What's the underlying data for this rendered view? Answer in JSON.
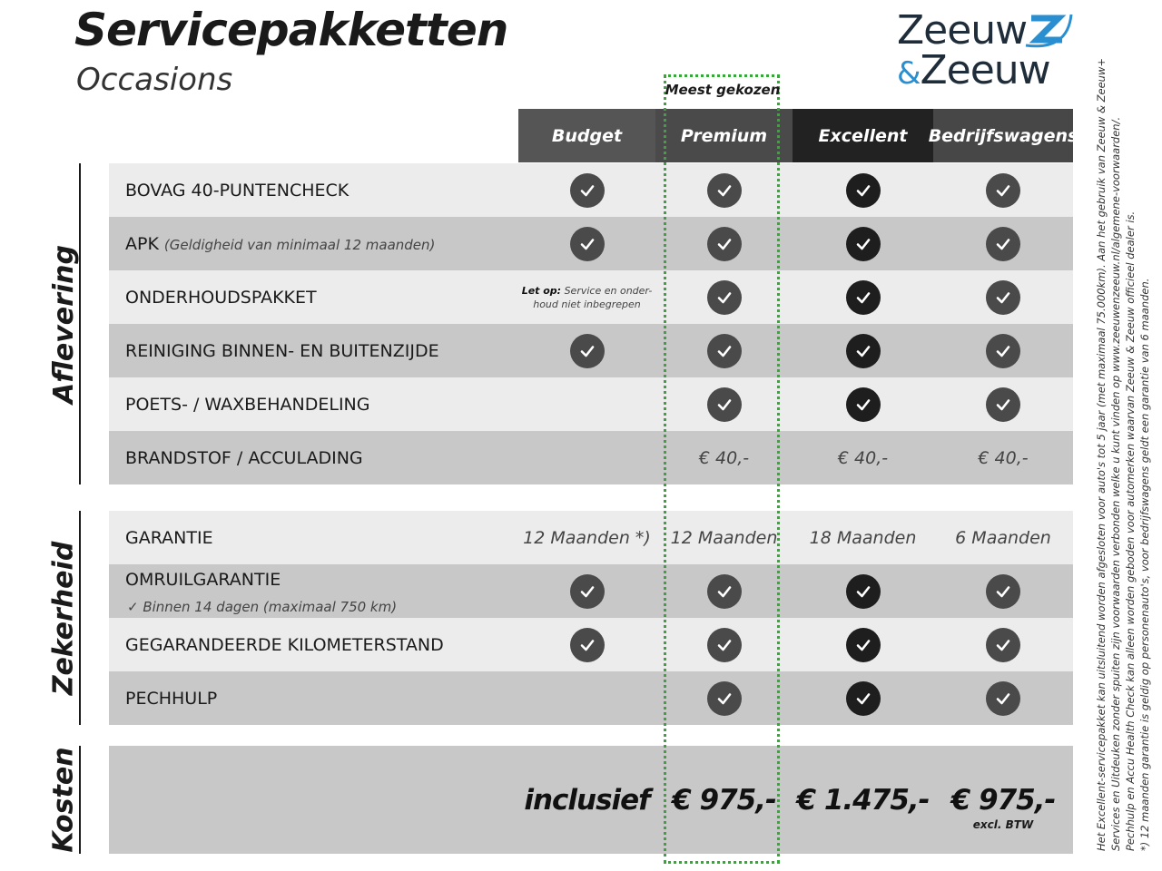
{
  "header": {
    "title": "Servicepakketten",
    "subtitle": "Occasions",
    "logo_text": "Zeeuw & Zeeuw",
    "logo_line1": "Zeeuw",
    "logo_amp": "&",
    "logo_line2": "Zeeuw"
  },
  "highlight_label": "Meest gekozen",
  "colors": {
    "highlight": "#3aa53a",
    "logo_dark": "#1f2d3a",
    "logo_blue": "#2a8fd0"
  },
  "columns": [
    {
      "label": "Budget",
      "bg": "#555555"
    },
    {
      "label": "Premium",
      "bg": "#4a4a4a"
    },
    {
      "label": "Excellent",
      "bg": "#222222"
    },
    {
      "label": "Bedrijfswagens",
      "bg": "#474747"
    }
  ],
  "sections": [
    {
      "name": "Aflevering",
      "rows": [
        {
          "label": "BOVAG 40-PUNTENCHECK",
          "cells": [
            "check",
            "check",
            "check",
            "check"
          ]
        },
        {
          "label": "APK",
          "sub": "(Geldigheid van minimaal 12 maanden)",
          "cells": [
            "check",
            "check",
            "check",
            "check"
          ]
        },
        {
          "label": "ONDERHOUDSPAKKET",
          "cells": [
            {
              "note_bold": "Let op:",
              "note": "Service en onder-",
              "note2": "houd niet inbegrepen"
            },
            "check",
            "check",
            "check"
          ]
        },
        {
          "label": "REINIGING BINNEN- EN BUITENZIJDE",
          "cells": [
            "check",
            "check",
            "check",
            "check"
          ]
        },
        {
          "label": "POETS- / WAXBEHANDELING",
          "cells": [
            "",
            "check",
            "check",
            "check"
          ]
        },
        {
          "label": "BRANDSTOF / ACCULADING",
          "cells": [
            "",
            {
              "text": "€ 40,-"
            },
            {
              "text": "€ 40,-"
            },
            {
              "text": "€ 40,-"
            }
          ]
        }
      ]
    },
    {
      "name": "Zekerheid",
      "rows": [
        {
          "label": "GARANTIE",
          "cells": [
            {
              "text": "12 Maanden *)"
            },
            {
              "text": "12 Maanden"
            },
            {
              "text": "18 Maanden"
            },
            {
              "text": "6 Maanden"
            }
          ]
        },
        {
          "label": "OMRUILGARANTIE",
          "sub2": "✓   Binnen 14 dagen (maximaal 750 km)",
          "cells": [
            "check",
            "check",
            "check",
            "check"
          ]
        },
        {
          "label": "GEGARANDEERDE KILOMETERSTAND",
          "cells": [
            "check",
            "check",
            "check",
            "check"
          ]
        },
        {
          "label": "PECHHULP",
          "cells": [
            "",
            "check",
            "check",
            "check"
          ]
        }
      ]
    },
    {
      "name": "Kosten",
      "rows": [
        {
          "label": "",
          "cells": [
            {
              "price": "inclusief"
            },
            {
              "price": "€ 975,-"
            },
            {
              "price": "€ 1.475,-"
            },
            {
              "price": "€ 975,-",
              "excl": "excl. BTW"
            }
          ]
        }
      ]
    }
  ],
  "footnotes": [
    "Het Excellent-servicepakket kan uitsluitend worden afgesloten voor auto's tot 5 jaar (met maximaal 75.000km). Aan het gebruik van Zeeuw & Zeeuw+",
    "Services en Uitdeuken zonder spuiten zijn voorwaarden verbonden welke u kunt vinden op www.zeeuwenzeeuw.nl/algemene-voorwaarden/.",
    "Pechhulp en Accu Health Check kan alleen worden geboden voor automerken waarvan Zeeuw & Zeeuw officieel dealer is.",
    "*) 12 maanden garantie is geldig op personenauto's, voor bedrijfswagens geldt een garantie van 6 maanden."
  ]
}
